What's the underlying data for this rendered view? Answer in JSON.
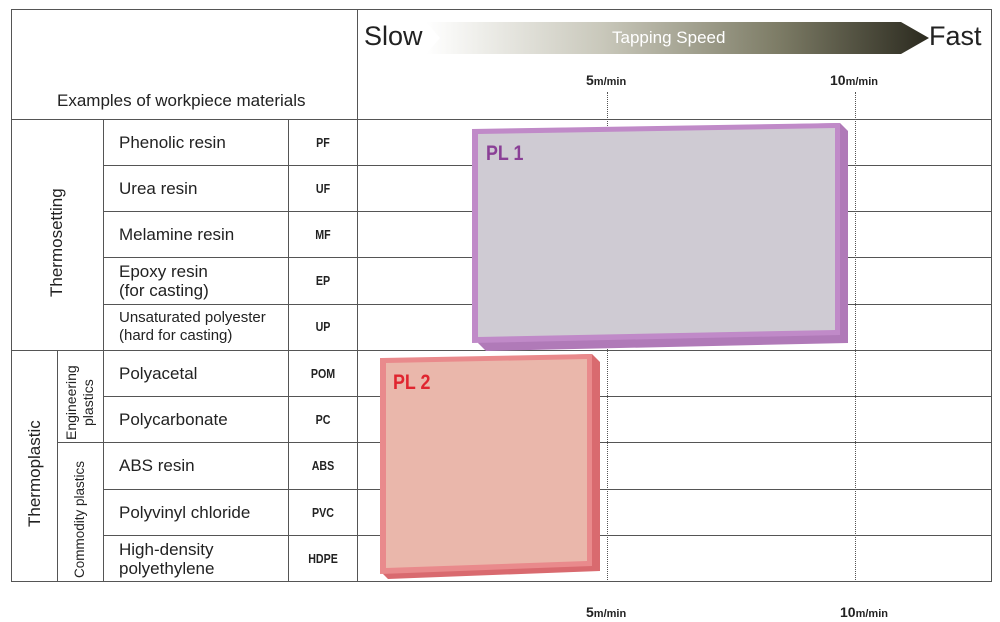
{
  "header": {
    "slow": "Slow",
    "fast": "Fast",
    "arrow_label": "Tapping Speed",
    "materials_title": "Examples of workpiece materials"
  },
  "speed_ticks": [
    {
      "value": 5,
      "label": "5",
      "unit": "m/min"
    },
    {
      "value": 10,
      "label": "10",
      "unit": "m/min"
    }
  ],
  "groups": {
    "thermosetting": "Thermosetting",
    "thermoplastic": "Thermoplastic",
    "engineering": [
      "Engineering",
      "plastics"
    ],
    "commodity": "Commodity plastics"
  },
  "materials": [
    {
      "name": "Phenolic resin",
      "abbr": "PF"
    },
    {
      "name": "Urea resin",
      "abbr": "UF"
    },
    {
      "name": "Melamine resin",
      "abbr": "MF"
    },
    {
      "name_lines": [
        "Epoxy resin",
        "(for casting)"
      ],
      "abbr": "EP"
    },
    {
      "name_lines": [
        "Unsaturated polyester",
        "(hard for casting)"
      ],
      "abbr": "UP"
    },
    {
      "name": "Polyacetal",
      "abbr": "POM"
    },
    {
      "name": "Polycarbonate",
      "abbr": "PC"
    },
    {
      "name": "ABS resin",
      "abbr": "ABS"
    },
    {
      "name": "Polyvinyl chloride",
      "abbr": "PVC"
    },
    {
      "name_lines": [
        "High-density",
        "polyethylene"
      ],
      "abbr": "HDPE"
    }
  ],
  "products": [
    {
      "label": "PL 1",
      "rows": "Phenolic resin – Unsaturated polyester",
      "speed_range": "up to about 10 m/min",
      "color": "#9b5fa8"
    },
    {
      "label": "PL 2",
      "rows": "Polyacetal – High-density polyethylene",
      "speed_range": "up to about 5 m/min",
      "color": "#e0252f"
    }
  ],
  "colors": {
    "pl1_fill": "#cfcbd3",
    "pl1_border": "#b07ab8",
    "pl2_fill": "#eab7ab",
    "pl2_border": "#e07c7e",
    "pl1_text": "#8a3f96",
    "pl2_text": "#e0252f"
  }
}
